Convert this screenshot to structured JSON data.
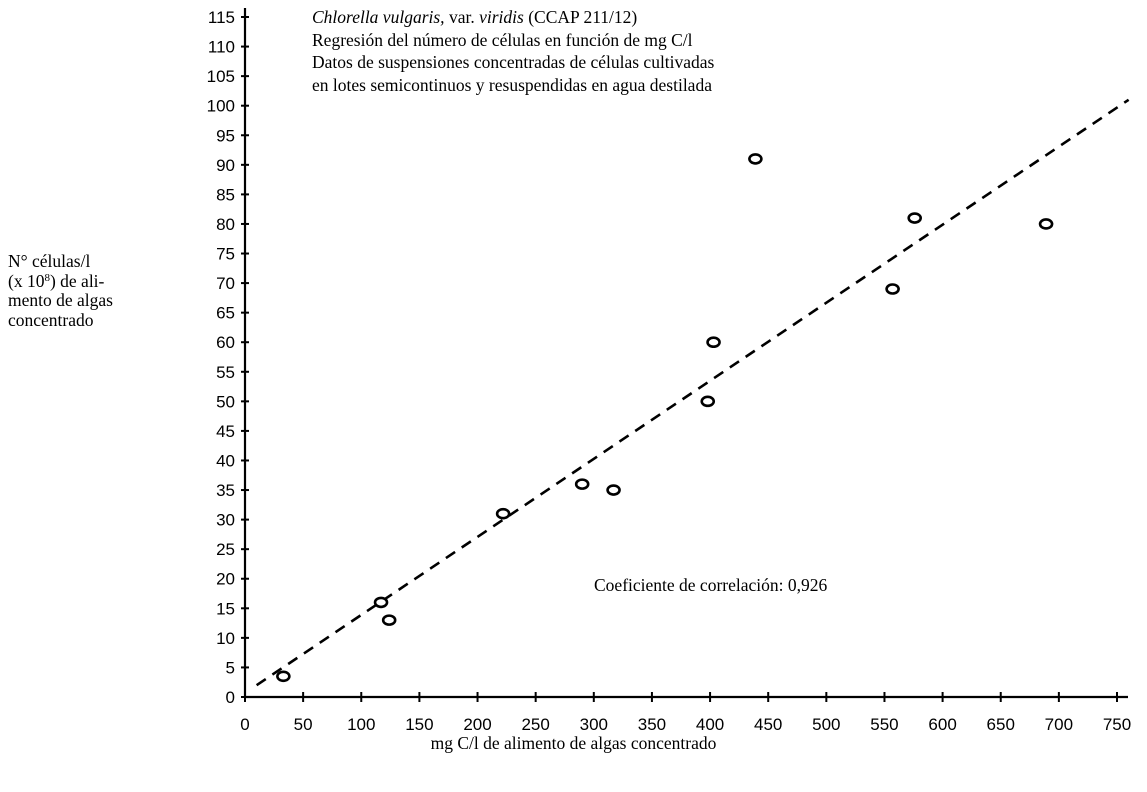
{
  "chart_data": {
    "type": "scatter",
    "title_lines": [
      {
        "italic_part": "Chlorella vulgaris,",
        "rest": " var. ",
        "italic_part2": "viridis",
        "rest2": " (CCAP 211/12)"
      },
      "Regresión del número de células en función de mg C/l",
      "Datos de suspensiones concentradas de células cultivadas",
      "en lotes semicontinuos y resuspendidas en agua destilada"
    ],
    "xlabel": "mg C/l de alimento de algas concentrado",
    "ylabel": {
      "line1": "N° células/l",
      "line2_pre": "(x 10",
      "line2_sup": "8",
      "line2_post": ") de ali-",
      "line3": "mento de algas",
      "line4": "concentrado"
    },
    "xlim": [
      0,
      750
    ],
    "ylim": [
      0,
      115
    ],
    "x_ticks": [
      0,
      50,
      100,
      150,
      200,
      250,
      300,
      350,
      400,
      450,
      500,
      550,
      600,
      650,
      700,
      750
    ],
    "y_ticks": [
      0,
      5,
      10,
      15,
      20,
      25,
      30,
      35,
      40,
      45,
      50,
      55,
      60,
      65,
      70,
      75,
      80,
      85,
      90,
      95,
      100,
      105,
      110,
      115
    ],
    "annotation": "Coeficiente de correlación: 0,926",
    "points": [
      {
        "x": 33,
        "y": 3.5
      },
      {
        "x": 117,
        "y": 16
      },
      {
        "x": 124,
        "y": 13
      },
      {
        "x": 222,
        "y": 31
      },
      {
        "x": 290,
        "y": 36
      },
      {
        "x": 317,
        "y": 35
      },
      {
        "x": 398,
        "y": 50
      },
      {
        "x": 403,
        "y": 60
      },
      {
        "x": 439,
        "y": 91
      },
      {
        "x": 557,
        "y": 69
      },
      {
        "x": 576,
        "y": 81
      },
      {
        "x": 689,
        "y": 80
      }
    ],
    "regression": {
      "x0": 10,
      "y0": 2,
      "x1": 760,
      "y1": 101
    }
  }
}
